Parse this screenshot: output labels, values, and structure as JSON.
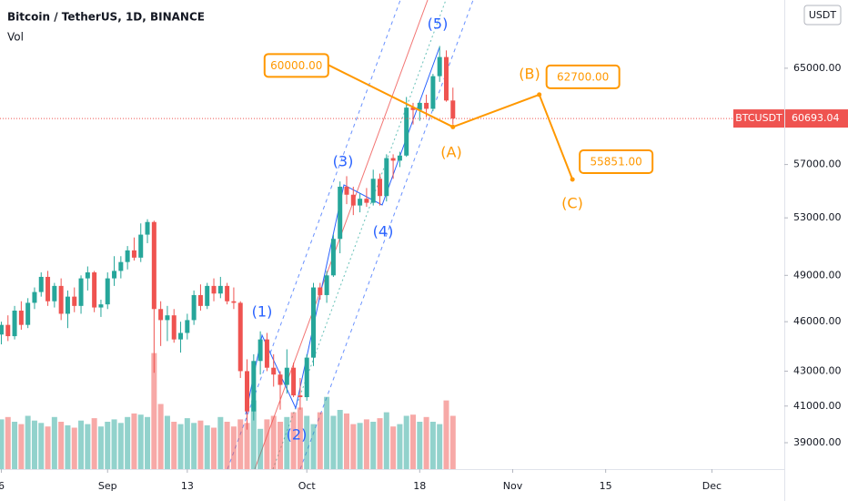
{
  "chart_data": {
    "type": "candlestick",
    "title": "Bitcoin / TetherUS, 1D, BINANCE",
    "subtitle": "Vol",
    "currency": "USDT",
    "symbol": "BTCUSDT",
    "last_price": 60693.04,
    "up_color": "#26a69a",
    "down_color": "#ef5350",
    "log_y": true,
    "x": [
      -16,
      -15,
      -14,
      -13,
      -12,
      -11,
      -10,
      -9,
      -8,
      -7,
      -6,
      -5,
      -4,
      -3,
      -2,
      -1,
      0,
      1,
      2,
      3,
      4,
      5,
      6,
      7,
      8,
      9,
      10,
      11,
      12,
      13,
      14,
      15,
      16,
      17,
      18,
      19,
      20,
      21,
      22,
      23,
      24,
      25,
      26,
      27,
      28,
      29,
      30,
      31,
      32,
      33,
      34,
      35,
      36,
      37,
      38,
      39,
      40,
      41,
      42,
      43,
      44,
      45,
      46,
      47,
      48,
      49,
      50,
      51,
      52
    ],
    "open": [
      45200,
      45800,
      45100,
      46700,
      45800,
      47200,
      47900,
      48900,
      47300,
      48300,
      46500,
      47600,
      47000,
      48800,
      49200,
      46900,
      47100,
      48800,
      49300,
      49900,
      50700,
      50200,
      51800,
      52700,
      46800,
      46100,
      46400,
      44900,
      45300,
      46100,
      47700,
      47000,
      48300,
      47800,
      48300,
      47300,
      47200,
      43000,
      40700,
      43600,
      44900,
      43200,
      42800,
      42200,
      43200,
      41600,
      41500,
      43800,
      48200,
      47700,
      49000,
      51500,
      55300,
      54700,
      53900,
      54400,
      54100,
      55900,
      54600,
      57500,
      57300,
      57700,
      61600,
      61400,
      62000,
      61500,
      64300,
      66000,
      62200
    ],
    "high": [
      46000,
      46400,
      47000,
      47300,
      47500,
      48200,
      49200,
      49300,
      48500,
      48800,
      48000,
      48200,
      49000,
      49600,
      49300,
      47400,
      49200,
      50300,
      50300,
      51000,
      51600,
      52600,
      52900,
      52800,
      47300,
      47000,
      46800,
      46000,
      46500,
      48000,
      48400,
      48500,
      48800,
      48900,
      48500,
      48200,
      47300,
      43700,
      44000,
      45400,
      45300,
      44000,
      43000,
      44300,
      43500,
      42600,
      44000,
      48500,
      48500,
      49300,
      51800,
      55700,
      56100,
      55300,
      54800,
      55200,
      56600,
      56300,
      57800,
      57800,
      58000,
      62500,
      62000,
      62100,
      62700,
      64500,
      67000,
      66600,
      63300
    ],
    "low": [
      44600,
      44800,
      44900,
      45500,
      45600,
      46800,
      47600,
      47000,
      46900,
      46100,
      45600,
      46600,
      46500,
      48000,
      46600,
      46300,
      46800,
      48300,
      48800,
      49400,
      50000,
      49900,
      51200,
      42900,
      44500,
      44800,
      44700,
      44100,
      44900,
      45800,
      46700,
      46800,
      47300,
      47500,
      47100,
      46800,
      42600,
      39700,
      40200,
      42800,
      43000,
      42100,
      40800,
      41700,
      41500,
      40800,
      41300,
      43300,
      47400,
      47200,
      48900,
      50500,
      54000,
      53200,
      53400,
      53800,
      53900,
      53900,
      54200,
      55900,
      56800,
      57600,
      60200,
      60500,
      60800,
      61300,
      63800,
      62100,
      60200
    ],
    "close": [
      45800,
      45100,
      46700,
      45800,
      47200,
      47900,
      48900,
      47300,
      48300,
      46500,
      47600,
      47000,
      48800,
      49200,
      46900,
      47100,
      48800,
      49300,
      49900,
      50700,
      50200,
      51800,
      52700,
      46800,
      46100,
      46400,
      44900,
      45300,
      46100,
      47700,
      47000,
      48300,
      47800,
      48300,
      47300,
      47200,
      43000,
      40700,
      43600,
      44900,
      43200,
      42800,
      42200,
      43200,
      41600,
      41500,
      43800,
      48200,
      47700,
      49000,
      51500,
      55300,
      54700,
      53900,
      54400,
      54100,
      55900,
      54600,
      57500,
      57300,
      57700,
      61600,
      61400,
      62000,
      61500,
      64300,
      66000,
      62200,
      60693.04
    ],
    "volume": [
      42,
      44,
      40,
      38,
      45,
      41,
      39,
      36,
      44,
      40,
      37,
      35,
      41,
      38,
      43,
      36,
      40,
      42,
      39,
      44,
      47,
      46,
      44,
      98,
      55,
      45,
      40,
      38,
      43,
      39,
      41,
      37,
      35,
      44,
      40,
      36,
      42,
      39,
      58,
      34,
      42,
      45,
      40,
      44,
      48,
      52,
      45,
      38,
      48,
      61,
      45,
      50,
      47,
      38,
      39,
      42,
      40,
      43,
      48,
      36,
      38,
      45,
      46,
      40,
      44,
      40,
      38,
      58,
      45
    ],
    "xlim": [
      -16.2,
      101.9
    ],
    "xticks": [
      {
        "value": -16,
        "label": "6"
      },
      {
        "value": 0,
        "label": "Sep"
      },
      {
        "value": 12,
        "label": "13"
      },
      {
        "value": 30,
        "label": "Oct"
      },
      {
        "value": 47,
        "label": "18"
      },
      {
        "value": 61,
        "label": "Nov"
      },
      {
        "value": 75,
        "label": "15"
      },
      {
        "value": 91,
        "label": "Dec"
      }
    ],
    "ylim": [
      37620,
      71340
    ],
    "yticks": [
      {
        "value": 39000,
        "label": "39000.00"
      },
      {
        "value": 41000,
        "label": "41000.00"
      },
      {
        "value": 43000,
        "label": "43000.00"
      },
      {
        "value": 46000,
        "label": "46000.00"
      },
      {
        "value": 49000,
        "label": "49000.00"
      },
      {
        "value": 53000,
        "label": "53000.00"
      },
      {
        "value": 57000,
        "label": "57000.00"
      },
      {
        "value": 65000,
        "label": "65000.00"
      }
    ],
    "y2lim": [
      0,
      100
    ],
    "waves": [
      "(1)",
      "(2)",
      "(3)",
      "(4)",
      "(5)"
    ],
    "wave_color": "#2962ff",
    "corrective": [
      "(A)",
      "(B)",
      "(C)"
    ],
    "projection": {
      "color": "#ff9800",
      "x": [
        52,
        65,
        70
      ],
      "values": [
        60000,
        62700,
        55851
      ],
      "value_labels": [
        "60000.00",
        "62700.00",
        "55851.00"
      ]
    }
  }
}
